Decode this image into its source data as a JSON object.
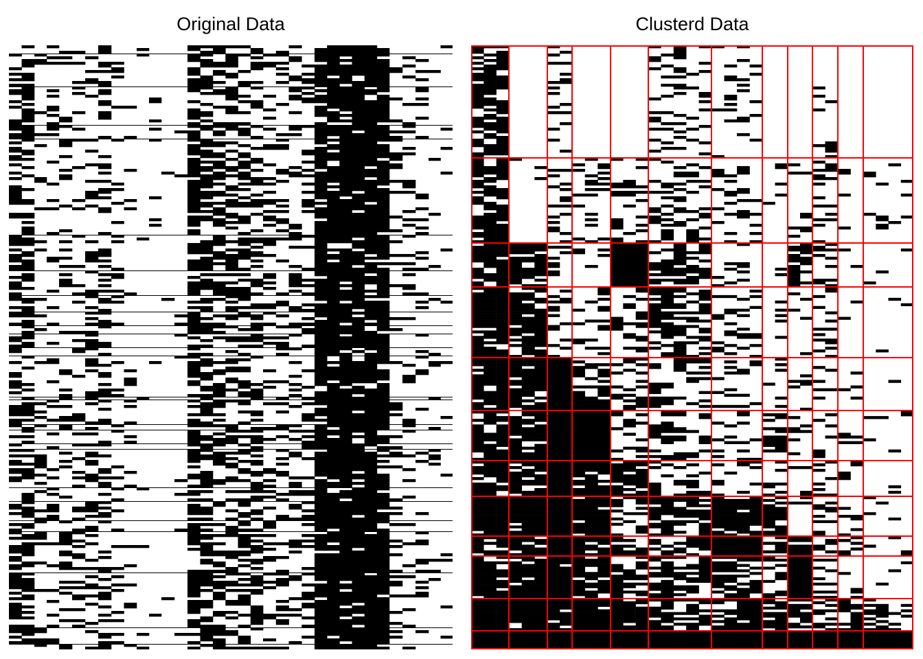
{
  "chart_data": [
    {
      "type": "heatmap",
      "title": "Original Data",
      "value_scale": "binary",
      "colors": {
        "on": "#000000",
        "off": "#ffffff"
      },
      "n_rows": 220,
      "columns": [
        {
          "density": 0.55
        },
        {
          "density": 0.18
        },
        {
          "density": 0.22
        },
        {
          "density": 0.35
        },
        {
          "density": 0.12
        },
        {
          "density": 0.05
        },
        {
          "density": 0.02
        },
        {
          "density": 0.65
        },
        {
          "density": 0.45
        },
        {
          "density": 0.3
        },
        {
          "density": 0.9
        },
        {
          "density": 0.2
        },
        {
          "density": 0.1
        }
      ]
    },
    {
      "type": "heatmap",
      "title": "Clusterd Data",
      "value_scale": "binary",
      "colors": {
        "on": "#000000",
        "off": "#ffffff",
        "grid": "#ff0000"
      },
      "n_rows": 220,
      "column_clusters": 12,
      "row_clusters": 12,
      "block_density": [
        [
          0.75,
          0.0,
          0.2,
          0.0,
          0.0,
          0.25,
          0.15,
          0.0,
          0.0,
          0.12,
          0.0,
          0.0
        ],
        [
          0.7,
          0.03,
          0.25,
          0.2,
          0.3,
          0.35,
          0.2,
          0.1,
          0.1,
          0.25,
          0.05,
          0.1
        ],
        [
          0.85,
          0.8,
          0.3,
          0.1,
          1.0,
          0.5,
          0.2,
          0.1,
          0.7,
          0.3,
          0.05,
          0.05
        ],
        [
          0.85,
          0.75,
          0.3,
          0.2,
          0.3,
          0.6,
          0.25,
          0.1,
          0.1,
          0.2,
          0.1,
          0.05
        ],
        [
          0.9,
          0.8,
          1.0,
          0.6,
          0.35,
          0.3,
          0.2,
          0.1,
          0.15,
          0.2,
          0.1,
          0.05
        ],
        [
          0.85,
          0.9,
          1.0,
          1.0,
          0.3,
          0.45,
          0.25,
          0.5,
          0.2,
          0.3,
          0.1,
          0.05
        ],
        [
          0.8,
          0.85,
          1.0,
          0.9,
          0.8,
          0.4,
          0.2,
          0.2,
          0.3,
          0.3,
          0.1,
          0.05
        ],
        [
          0.95,
          0.95,
          1.0,
          0.95,
          0.3,
          0.7,
          0.85,
          0.7,
          0.15,
          0.3,
          0.2,
          0.05
        ],
        [
          0.7,
          0.95,
          0.9,
          0.85,
          0.7,
          0.55,
          0.9,
          0.4,
          0.8,
          0.5,
          0.4,
          0.1
        ],
        [
          0.8,
          0.95,
          0.95,
          0.8,
          0.7,
          0.6,
          0.6,
          0.4,
          1.0,
          0.4,
          0.2,
          0.05
        ],
        [
          0.95,
          0.95,
          0.95,
          0.95,
          0.9,
          0.7,
          0.7,
          0.8,
          0.7,
          0.4,
          0.7,
          0.3
        ],
        [
          1.0,
          1.0,
          1.0,
          1.0,
          1.0,
          1.0,
          1.0,
          1.0,
          1.0,
          1.0,
          1.0,
          1.0
        ]
      ]
    }
  ]
}
